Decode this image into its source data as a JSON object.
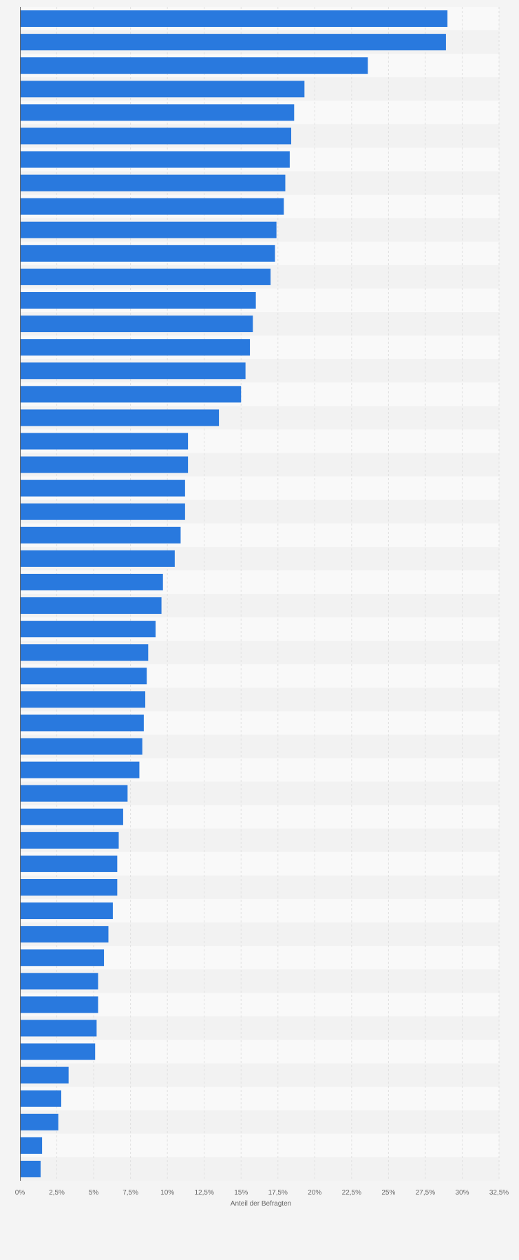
{
  "chart_data": {
    "type": "bar",
    "orientation": "horizontal",
    "title": "",
    "xlabel": "Anteil der Befragten",
    "ylabel": "",
    "xlim": [
      0,
      32.5
    ],
    "ticks": [
      {
        "value": 0,
        "label": "0%"
      },
      {
        "value": 2.5,
        "label": "2,5%"
      },
      {
        "value": 5,
        "label": "5%"
      },
      {
        "value": 7.5,
        "label": "7,5%"
      },
      {
        "value": 10,
        "label": "10%"
      },
      {
        "value": 12.5,
        "label": "12,5%"
      },
      {
        "value": 15,
        "label": "15%"
      },
      {
        "value": 17.5,
        "label": "17,5%"
      },
      {
        "value": 20,
        "label": "20%"
      },
      {
        "value": 22.5,
        "label": "22,5%"
      },
      {
        "value": 25,
        "label": "25%"
      },
      {
        "value": 27.5,
        "label": "27,5%"
      },
      {
        "value": 30,
        "label": "30%"
      },
      {
        "value": 32.5,
        "label": "32,5%"
      }
    ],
    "values": [
      29.0,
      28.9,
      23.6,
      19.3,
      18.6,
      18.4,
      18.3,
      18.0,
      17.9,
      17.4,
      17.3,
      17.0,
      16.0,
      15.8,
      15.6,
      15.3,
      15.0,
      13.5,
      11.4,
      11.4,
      11.2,
      11.2,
      10.9,
      10.5,
      9.7,
      9.6,
      9.2,
      8.7,
      8.6,
      8.5,
      8.4,
      8.3,
      8.1,
      7.3,
      7.0,
      6.7,
      6.6,
      6.6,
      6.3,
      6.0,
      5.7,
      5.3,
      5.3,
      5.2,
      5.1,
      3.3,
      2.8,
      2.6,
      1.5,
      1.4
    ],
    "grid": true,
    "legend": "none",
    "colors": {
      "bar": "#2979de",
      "row_light": "#f9f9f9",
      "row_dark": "#f2f2f2",
      "grid": "#e0e0e0",
      "axis": "#666666",
      "background": "#f4f4f4"
    }
  }
}
